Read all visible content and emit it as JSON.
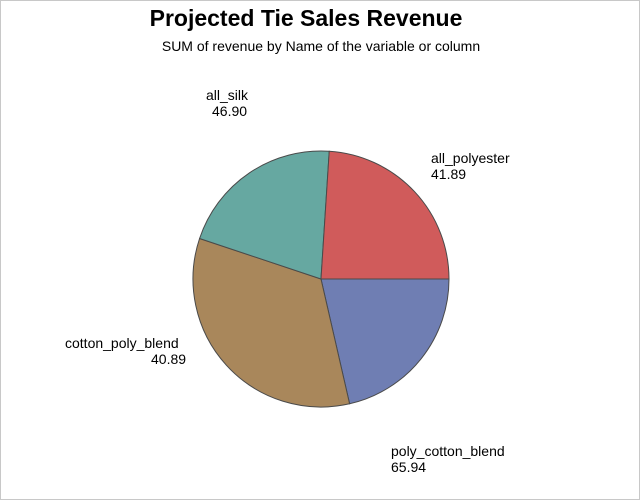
{
  "chart_data": {
    "type": "pie",
    "title": "Projected Tie Sales Revenue",
    "subtitle": "SUM of revenue by Name of the variable or column",
    "categories": [
      "all_polyester",
      "poly_cotton_blend",
      "cotton_poly_blend",
      "all_silk"
    ],
    "values": [
      41.89,
      65.94,
      40.89,
      46.9
    ],
    "value_labels": [
      "41.89",
      "65.94",
      "40.89",
      "46.90"
    ],
    "colors": [
      "#6f7eb3",
      "#a9875b",
      "#66a8a1",
      "#d05b5b"
    ],
    "start_angle_deg": 0,
    "direction": "clockwise",
    "legend": "none"
  }
}
